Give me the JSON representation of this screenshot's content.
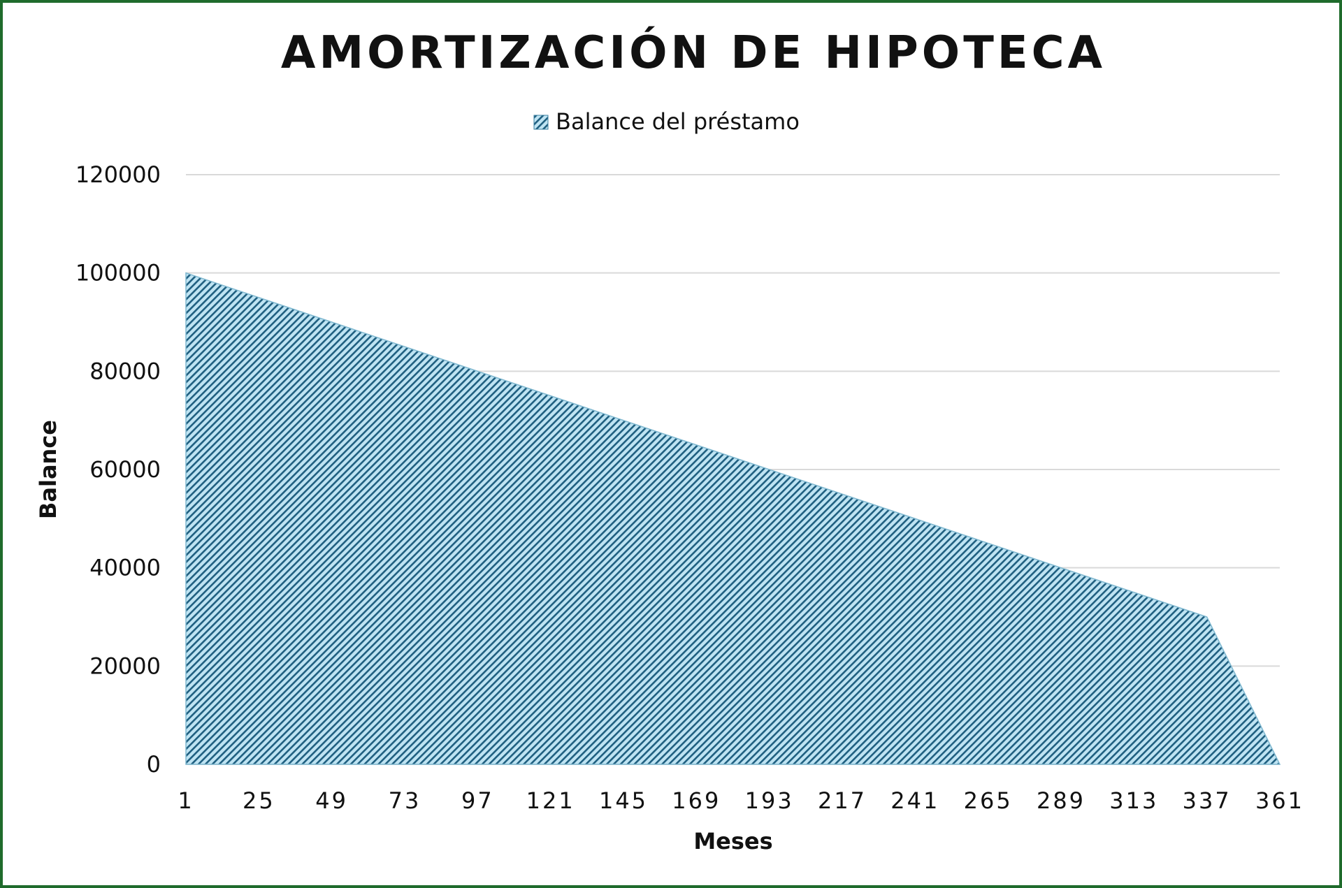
{
  "chart_data": {
    "type": "area",
    "title": "AMORTIZACIÓN DE HIPOTECA",
    "xlabel": "Meses",
    "ylabel": "Balance",
    "legend": {
      "position": "top",
      "entries": [
        "Balance del préstamo"
      ]
    },
    "series": [
      {
        "name": "Balance del préstamo",
        "x": [
          1,
          337,
          361
        ],
        "values": [
          100000,
          30000,
          0
        ]
      }
    ],
    "x_ticks": [
      "1",
      "25",
      "49",
      "73",
      "97",
      "121",
      "145",
      "169",
      "193",
      "217",
      "241",
      "265",
      "289",
      "313",
      "337",
      "361"
    ],
    "y_ticks": [
      "0",
      "20000",
      "40000",
      "60000",
      "80000",
      "100000",
      "120000"
    ],
    "xlim": [
      1,
      361
    ],
    "ylim": [
      0,
      120000
    ],
    "grid": "horizontal",
    "colors": {
      "fill": "#bfe4f3",
      "hatch": "#1f5f80",
      "border": "#1f6b2c",
      "grid": "#d9d9d9"
    }
  }
}
